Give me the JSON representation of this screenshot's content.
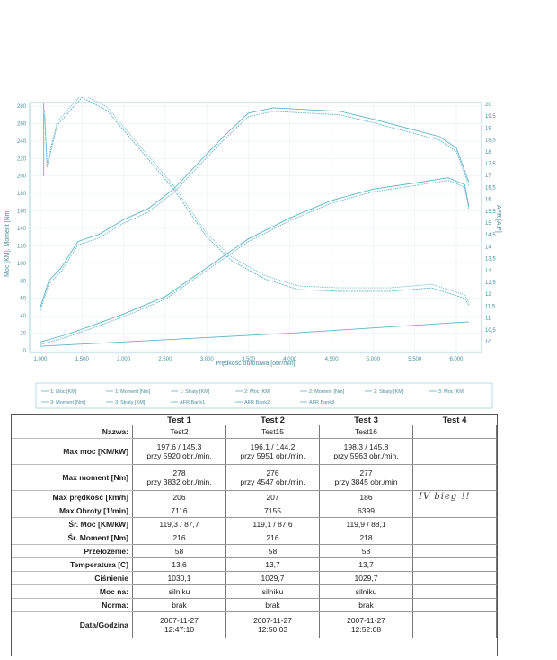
{
  "chart": {
    "left_axis_label": "Moc [KM], Moment [Nm]",
    "right_axis_label": "AFR [A:F]",
    "x_axis_label": "Prędkość obrotowa [obr/min]",
    "left_ticks": [
      "280",
      "260",
      "240",
      "220",
      "200",
      "180",
      "160",
      "140",
      "120",
      "100",
      "80",
      "60",
      "40",
      "20",
      "0"
    ],
    "right_ticks": [
      "20",
      "19,5",
      "19",
      "18,5",
      "18",
      "17,5",
      "17",
      "16,5",
      "16",
      "15,5",
      "15",
      "14,5",
      "14",
      "13,5",
      "13",
      "12,5",
      "12",
      "11,5",
      "11",
      "10,5",
      "10"
    ],
    "x_ticks": [
      "1.000",
      "1.500",
      "2.000",
      "2.500",
      "3.000",
      "3.500",
      "4.000",
      "4.500",
      "5.000",
      "5.500",
      "6.000"
    ],
    "legend_row1": [
      "1: Moc [KM]",
      "1: Moment [Nm]",
      "1: Straty [KM]",
      "2: Moc [KM]",
      "2: Moment [Nm]",
      "2: Straty [KM]",
      "3: Moc [KM]"
    ],
    "legend_row2": [
      "3: Moment [Nm]",
      "3: Straty [KM]",
      "AFR Bank1",
      "AFR Bank2",
      "AFR Bank3"
    ],
    "line_color": "#5fb3c6"
  },
  "table": {
    "headers": [
      "Test 1",
      "Test 2",
      "Test 3",
      "Test 4"
    ],
    "rows": [
      {
        "label": "Nazwa:",
        "values": [
          "Test2",
          "Test15",
          "Test16",
          ""
        ]
      },
      {
        "label": "Max moc [KM/kW]",
        "values": [
          "197,6 / 145,3",
          "196,1 / 144,2",
          "198,3 / 145,8",
          ""
        ],
        "sub": [
          "przy 5920 obr./min.",
          "przy 5951 obr./min.",
          "przy 5963 obr./min.",
          ""
        ]
      },
      {
        "label": "Max moment [Nm]",
        "values": [
          "278",
          "276",
          "277",
          ""
        ],
        "sub": [
          "przy 3832 obr./min.",
          "przy 4547 obr./min.",
          "przy 3845 obr./min",
          ""
        ]
      },
      {
        "label": "Max prędkość [km/h]",
        "values": [
          "206",
          "207",
          "186",
          "IV bieg !!"
        ]
      },
      {
        "label": "Max Obroty [1/min]",
        "values": [
          "7116",
          "7155",
          "6399",
          ""
        ]
      },
      {
        "label": "Śr. Moc [KM/kW]",
        "values": [
          "119,3 / 87,7",
          "119,1 / 87,6",
          "119,9 / 88,1",
          ""
        ]
      },
      {
        "label": "Śr. Moment [Nm]",
        "values": [
          "216",
          "216",
          "218",
          ""
        ]
      },
      {
        "label": "Przełożenie:",
        "values": [
          "58",
          "58",
          "58",
          ""
        ]
      },
      {
        "label": "Temperatura [C]",
        "values": [
          "13,6",
          "13,7",
          "13,7",
          ""
        ]
      },
      {
        "label": "Ciśnienie",
        "values": [
          "1030,1",
          "1029,7",
          "1029,7",
          ""
        ]
      },
      {
        "label": "Moc na:",
        "values": [
          "silniku",
          "silniku",
          "silniku",
          ""
        ]
      },
      {
        "label": "Norma:",
        "values": [
          "brak",
          "brak",
          "brak",
          ""
        ]
      },
      {
        "label": "Data/Godzina",
        "values": [
          "2007-11-27",
          "2007-11-27",
          "2007-11-27",
          ""
        ],
        "sub": [
          "12:47:10",
          "12:50:03",
          "12:52:08",
          ""
        ]
      }
    ]
  }
}
